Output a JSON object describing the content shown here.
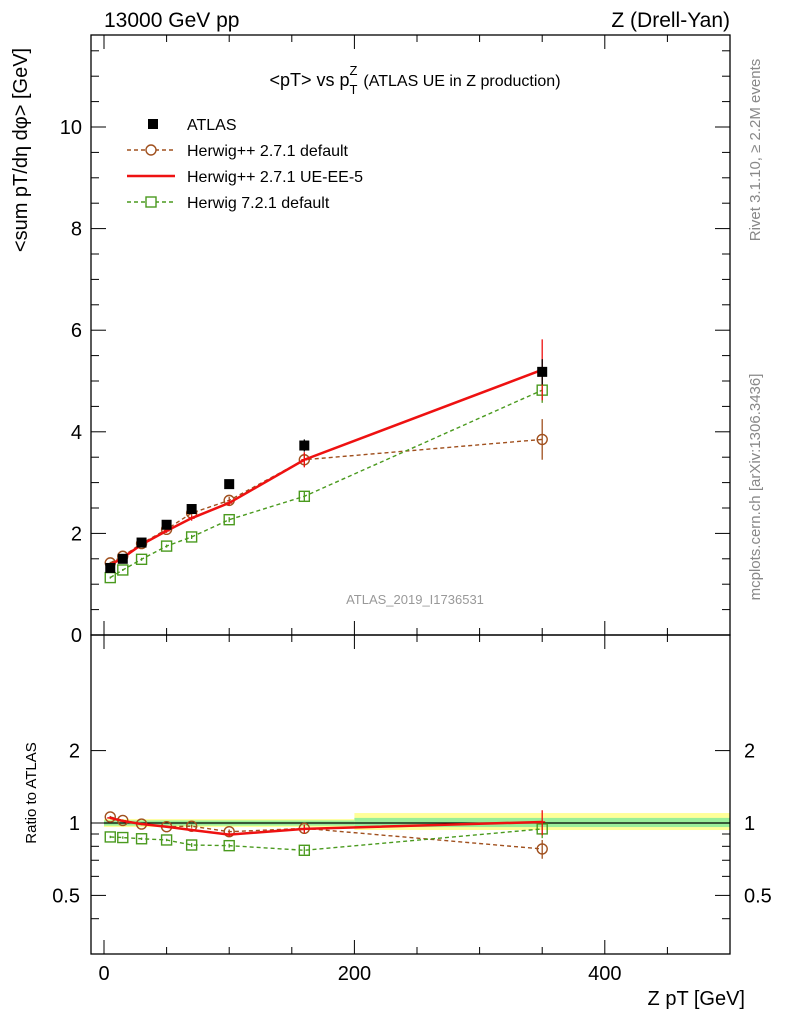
{
  "header": {
    "left": "13000 GeV pp",
    "right": "Z (Drell-Yan)"
  },
  "side_labels": {
    "rivet": "Rivet 3.1.10, ≥ 2.2M events",
    "mcplots": "mcplots.cern.ch [arXiv:1306.3436]"
  },
  "chart_data": [
    {
      "type": "line",
      "title": "<pT> vs pTZ (ATLAS UE in Z production)",
      "title_main": "<pT> vs p",
      "title_sup": "Z",
      "title_sub": "T",
      "title_paren": "(ATLAS UE in Z production)",
      "ylabel": "<sum pT/dη dφ> [GeV]",
      "xlabel": "Z pT [GeV]",
      "watermark": "ATLAS_2019_I1736531",
      "xlim": [
        -15,
        510
      ],
      "ylim": [
        0,
        11.8
      ],
      "yticks": [
        0,
        2,
        4,
        6,
        8,
        10
      ],
      "legend_position": "top-left",
      "series": [
        {
          "name": "ATLAS",
          "style": "data",
          "color": "#000000",
          "x": [
            5,
            15,
            30,
            50,
            70,
            100,
            160,
            350
          ],
          "y": [
            1.32,
            1.5,
            1.82,
            2.17,
            2.48,
            2.97,
            3.73,
            5.18
          ],
          "err": [
            0.05,
            0.05,
            0.06,
            0.07,
            0.08,
            0.09,
            0.12,
            0.25
          ]
        },
        {
          "name": "Herwig++ 2.7.1 default",
          "style": "circle-dashed",
          "color": "#a0501e",
          "x": [
            5,
            15,
            30,
            50,
            70,
            100,
            160,
            350
          ],
          "y": [
            1.42,
            1.55,
            1.8,
            2.08,
            2.4,
            2.65,
            3.45,
            3.85
          ],
          "err": [
            0.02,
            0.03,
            0.03,
            0.04,
            0.05,
            0.07,
            0.13,
            0.4
          ]
        },
        {
          "name": "Herwig++ 2.7.1 UE-EE-5",
          "style": "solid",
          "color": "#ee1111",
          "x": [
            5,
            15,
            30,
            50,
            70,
            100,
            160,
            350
          ],
          "y": [
            1.38,
            1.52,
            1.78,
            2.05,
            2.3,
            2.6,
            3.45,
            5.22
          ],
          "err": [
            0.02,
            0.03,
            0.03,
            0.04,
            0.05,
            0.06,
            0.15,
            0.6
          ]
        },
        {
          "name": "Herwig 7.2.1 default",
          "style": "square-dashed",
          "color": "#4a9a1e",
          "x": [
            5,
            15,
            30,
            50,
            70,
            100,
            160,
            350
          ],
          "y": [
            1.13,
            1.28,
            1.49,
            1.75,
            1.93,
            2.27,
            2.73,
            4.82
          ],
          "err": [
            0.02,
            0.02,
            0.03,
            0.03,
            0.04,
            0.05,
            0.1,
            0.25
          ]
        }
      ]
    },
    {
      "type": "line",
      "ylabel": "Ratio to ATLAS",
      "y_scale": "log",
      "ylim": [
        0.36,
        2.35
      ],
      "yticks": [
        0.5,
        1,
        2
      ],
      "ytick_labels": [
        "0.5",
        "1",
        "2"
      ],
      "xticks": [
        0,
        200,
        400
      ],
      "xtick_labels": [
        "0",
        "200",
        "400"
      ],
      "bands": [
        {
          "x": [
            0,
            200
          ],
          "yellow": [
            0.962,
            1.038
          ],
          "green": [
            0.975,
            1.025
          ]
        },
        {
          "x": [
            200,
            500
          ],
          "yellow": [
            0.935,
            1.1
          ],
          "green": [
            0.962,
            1.05
          ]
        }
      ],
      "series": [
        {
          "name": "Herwig++ 2.7.1 default",
          "style": "circle-dashed",
          "color": "#a0501e",
          "x": [
            5,
            15,
            30,
            50,
            70,
            100,
            160,
            350
          ],
          "y": [
            1.06,
            1.025,
            0.99,
            0.965,
            0.97,
            0.92,
            0.95,
            0.78
          ],
          "err": [
            0.01,
            0.01,
            0.01,
            0.01,
            0.015,
            0.02,
            0.03,
            0.07
          ]
        },
        {
          "name": "Herwig++ 2.7.1 UE-EE-5",
          "style": "solid",
          "color": "#ee1111",
          "x": [
            5,
            15,
            30,
            50,
            70,
            100,
            160,
            350
          ],
          "y": [
            1.05,
            1.02,
            0.99,
            0.965,
            0.935,
            0.895,
            0.945,
            1.01
          ],
          "err": [
            0.01,
            0.01,
            0.01,
            0.01,
            0.015,
            0.02,
            0.04,
            0.12
          ]
        },
        {
          "name": "Herwig 7.2.1 default",
          "style": "square-dashed",
          "color": "#4a9a1e",
          "x": [
            5,
            15,
            30,
            50,
            70,
            100,
            160,
            350
          ],
          "y": [
            0.875,
            0.87,
            0.86,
            0.85,
            0.81,
            0.805,
            0.77,
            0.945
          ],
          "err": [
            0.01,
            0.01,
            0.01,
            0.01,
            0.015,
            0.015,
            0.03,
            0.08
          ]
        }
      ]
    }
  ]
}
